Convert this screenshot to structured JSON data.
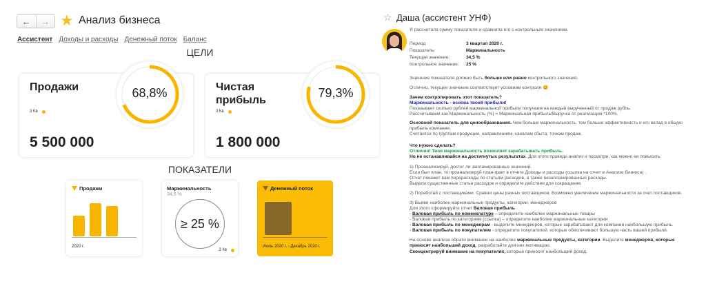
{
  "header": {
    "title": "Анализ бизнеса",
    "back_icon": "arrow-left",
    "forward_icon": "arrow-right",
    "favorite_icon": "star"
  },
  "tabs": [
    {
      "label": "Ассистент",
      "active": true
    },
    {
      "label": "Доходы и расходы"
    },
    {
      "label": "Денежный поток"
    },
    {
      "label": "Баланс"
    }
  ],
  "goals": {
    "title": "ЦЕЛИ",
    "items": [
      {
        "name": "Продажи",
        "period": "3 Кв",
        "value": "5 500 000",
        "percent_label": "68,8%",
        "percent": 68.8
      },
      {
        "name": "Чистая прибыль",
        "period": "3 Кв",
        "value": "1 800 000",
        "percent_label": "79,3%",
        "percent": 79.3
      }
    ]
  },
  "indicators": {
    "title": "ПОКАЗАТЕЛИ",
    "sales": {
      "title": "Продажи",
      "period": "2020 г.",
      "bars": [
        3,
        4.8,
        4.4
      ]
    },
    "margin": {
      "title": "Маржинальность",
      "current": "34,5 %",
      "target": "≥ 25 %",
      "period": "3 Кв"
    },
    "cashflow": {
      "title": "Денежный поток",
      "period": "Июль 2020 г. - Декабрь 2020 г."
    }
  },
  "colors": {
    "accent": "#f7b500",
    "cash_card": "#fbbc05",
    "cash_bar": "#86692a",
    "blue": "#1a1ab0",
    "green": "#1a9e3a"
  },
  "assistant": {
    "title": "Даша (ассистент УНФ)",
    "intro": "Я рассчитала сумму показателя и сравнила его с контрольным значением.",
    "fields": [
      {
        "k": "Период:",
        "v": "3 квартал 2020 г."
      },
      {
        "k": "Показатель:",
        "v": "Маржинальность"
      },
      {
        "k": "Текущее значение:",
        "v": "34,5 %"
      },
      {
        "k": "Контрольное значение:",
        "v": "25 %"
      }
    ],
    "lines": [
      [
        {
          "t": "Значение показателя должно быть "
        },
        {
          "t": "больше или равно",
          "b": 1
        },
        {
          "t": " контрольного значения."
        }
      ],
      [
        {
          "t": "Отлично, текущее значение соответствует условиям контроля  "
        },
        {
          "t": "😊"
        }
      ],
      [
        {
          "t": "Зачем контролировать этот показатель?",
          "b": 1
        }
      ],
      [
        {
          "t": "Маржинальность - основа твоей прибыли!",
          "b": 1,
          "c": "blue"
        }
      ],
      [
        {
          "t": "Показывает сколько рублей маржинальной прибыли получаем на каждый вырученный от продаж рубль."
        }
      ],
      [
        {
          "t": "Рассчитываем как Маржинальность (%) = Маржинальная прибыль/Выручка от реализация *100%."
        }
      ],
      [
        {
          "t": "Основной показатель для ценообразования.",
          "b": 1
        },
        {
          "t": "  Чем больше маржинальность, тем больше эффективность и его вклад в общую"
        }
      ],
      [
        {
          "t": "прибыль компании."
        }
      ],
      [
        {
          "t": "Считается по группам продукции, направлениям, каналам сбыта, точкам продаж."
        }
      ],
      [
        {
          "t": "Что нужно сделать?",
          "b": 1
        }
      ],
      [
        {
          "t": "Отлично! Твоя маржинальность позволяет зарабатывать прибыль.",
          "b": 1,
          "c": "green"
        }
      ],
      [
        {
          "t": "Но не останавливайся на достигнутых результатах",
          "b": 1
        },
        {
          "t": ". Для этого проведи анализ и посмотри, как можно ее повысить."
        }
      ],
      [
        {
          "t": "1) Проанализируй, достиг ли запланированных значений."
        }
      ],
      [
        {
          "t": "Если был план, то проанализируй план-факт в отчете Доходы и расходы (ссылка на отчет в Анализе бизнеса) ."
        }
      ],
      [
        {
          "t": "Отчет покажет вам перерасходы по статьям расходов, а также незапланированные расходы."
        }
      ],
      [
        {
          "t": "Выдели существенные статьи расходов и определите действия для сокращения."
        }
      ],
      [
        {
          "t": "2) Поработай с поставщиками. Сравни цены разных поставщиков. Возможно увеличение маржинальности за счет поставщиков."
        }
      ],
      [
        {
          "t": "3) Выяви наиболее маржинальные продукты, категории, менеджеров"
        }
      ],
      [
        {
          "t": "  Для этого сформируйте отчет "
        },
        {
          "t": "Валовая прибыль",
          "b": 1
        }
      ],
      [
        {
          "t": "- "
        },
        {
          "t": "Валовая прибыль по номенклатуре",
          "b": 1,
          "u": 1
        },
        {
          "t": " – определите наиболее маржинальные товары"
        }
      ],
      [
        {
          "t": "- Валовая прибыль по категориям (ссылка) – определите наиболее маржинальные категории"
        }
      ],
      [
        {
          "t": "- "
        },
        {
          "t": "Валовая прибыль по менеджерам",
          "b": 1
        },
        {
          "t": "  -  выделите менеджеров, которые зарабатывают для компании наибольшую прибыль."
        }
      ],
      [
        {
          "t": "- "
        },
        {
          "t": "Валовая прибыль по покупателям",
          "b": 1
        },
        {
          "t": " - определите покупателей, которые  обеспечивают большую часть вашей прибыли."
        }
      ],
      [
        {
          "t": "На основе анализа обрати внимание на наиболее "
        },
        {
          "t": "маржинальные продукты, категории",
          "b": 1
        },
        {
          "t": ". Выделите "
        },
        {
          "t": "менеджеров, которые",
          "b": 1
        }
      ],
      [
        {
          "t": "приносят наибольший доход",
          "b": 1
        },
        {
          "t": ", разработайте для них мотивацию."
        }
      ],
      [
        {
          "t": "Сконцентрируй внимание на покупателях,",
          "b": 1
        },
        {
          "t": " которые приносят наибольший доход."
        }
      ]
    ]
  }
}
